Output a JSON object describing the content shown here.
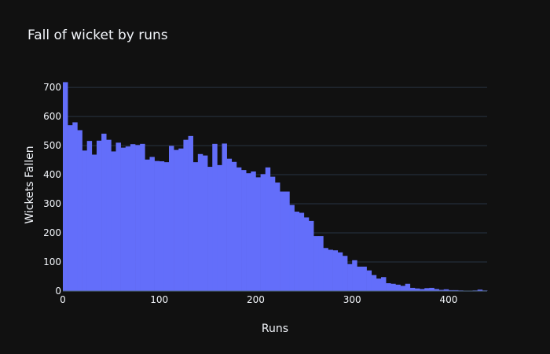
{
  "chart_data": {
    "type": "bar",
    "title": "Fall of wicket by runs",
    "xlabel": "Runs",
    "ylabel": "Wickets Fallen",
    "bin_width": 5,
    "xlim": [
      0,
      440
    ],
    "ylim": [
      0,
      730
    ],
    "x_ticks": [
      0,
      100,
      200,
      300,
      400
    ],
    "y_ticks": [
      0,
      100,
      200,
      300,
      400,
      500,
      600,
      700
    ],
    "grid": true,
    "bar_color": "#636efa",
    "background_color": "#111111",
    "bins_start": [
      0,
      5,
      10,
      15,
      20,
      25,
      30,
      35,
      40,
      45,
      50,
      55,
      60,
      65,
      70,
      75,
      80,
      85,
      90,
      95,
      100,
      105,
      110,
      115,
      120,
      125,
      130,
      135,
      140,
      145,
      150,
      155,
      160,
      165,
      170,
      175,
      180,
      185,
      190,
      195,
      200,
      205,
      210,
      215,
      220,
      225,
      230,
      235,
      240,
      245,
      250,
      255,
      260,
      265,
      270,
      275,
      280,
      285,
      290,
      295,
      300,
      305,
      310,
      315,
      320,
      325,
      330,
      335,
      340,
      345,
      350,
      355,
      360,
      365,
      370,
      375,
      380,
      385,
      390,
      395,
      400,
      405,
      410,
      415,
      420,
      425,
      430,
      435
    ],
    "values": [
      718,
      570,
      580,
      553,
      483,
      516,
      469,
      517,
      541,
      520,
      480,
      510,
      493,
      497,
      505,
      502,
      506,
      452,
      461,
      447,
      446,
      443,
      499,
      485,
      490,
      520,
      533,
      443,
      471,
      466,
      427,
      506,
      433,
      507,
      455,
      444,
      425,
      416,
      405,
      411,
      391,
      402,
      425,
      393,
      373,
      342,
      342,
      296,
      273,
      269,
      253,
      241,
      189,
      189,
      148,
      142,
      140,
      133,
      121,
      93,
      106,
      84,
      84,
      71,
      55,
      43,
      48,
      27,
      25,
      22,
      18,
      25,
      11,
      9,
      7,
      10,
      11,
      7,
      4,
      6,
      3,
      3,
      2,
      1,
      1,
      2,
      5,
      2
    ]
  }
}
